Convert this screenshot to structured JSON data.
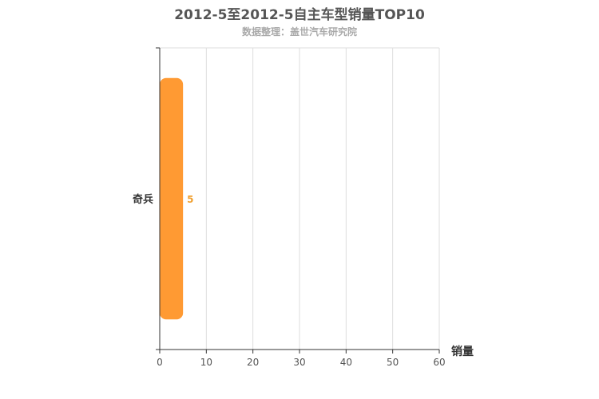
{
  "chart_data": {
    "type": "bar",
    "orientation": "horizontal",
    "title": "2012-5至2012-5自主车型销量TOP10",
    "subtitle": "数据整理：盖世汽车研究院",
    "categories": [
      "奇兵"
    ],
    "values": [
      5
    ],
    "xlabel": "销量",
    "ylabel": "",
    "xlim": [
      0,
      60
    ],
    "xticks": [
      0,
      10,
      20,
      30,
      40,
      50,
      60
    ],
    "grid": true,
    "bar_color": "#ff9a33",
    "label_color": "#f0a030"
  }
}
